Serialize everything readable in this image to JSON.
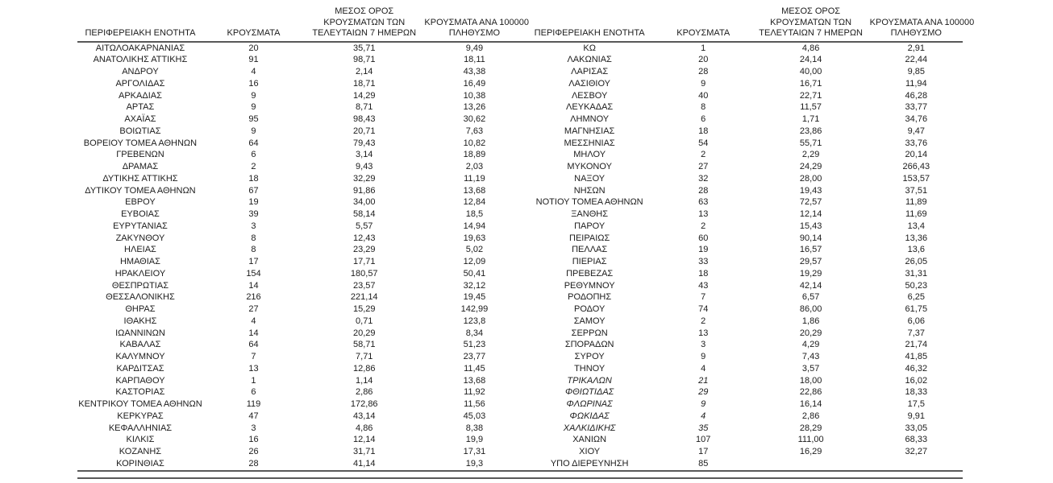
{
  "page": {
    "background_color": "#ffffff",
    "text_color": "#1c1c1c",
    "rule_color": "#595959"
  },
  "chart_data": {
    "type": "table",
    "layout": "two side-by-side halves sharing one continuous header underline and double bottom rule",
    "headers": {
      "region": "ΠΕΡΙΦΕΡΕΙΑΚΗ ΕΝΟΤΗΤΑ",
      "cases": "ΚΡΟΥΣΜΑΤΑ",
      "avg7_lines": [
        "ΜΕΣΟΣ ΟΡΟΣ",
        "ΚΡΟΥΣΜΑΤΩΝ ΤΩΝ",
        "ΤΕΛΕΥΤΑΙΩΝ 7 ΗΜΕΡΩΝ"
      ],
      "per100k_lines": [
        "ΚΡΟΥΣΜΑΤΑ ΑΝΑ 100000",
        "ΠΛΗΘΥΣΜΟ"
      ]
    },
    "left_rows": [
      [
        "ΑΙΤΩΛΟΑΚΑΡΝΑΝΙΑΣ",
        "20",
        "35,71",
        "9,49"
      ],
      [
        "ΑΝΑΤΟΛΙΚΗΣ ΑΤΤΙΚΗΣ",
        "91",
        "98,71",
        "18,11"
      ],
      [
        "ΑΝΔΡΟΥ",
        "4",
        "2,14",
        "43,38"
      ],
      [
        "ΑΡΓΟΛΙΔΑΣ",
        "16",
        "18,71",
        "16,49"
      ],
      [
        "ΑΡΚΑΔΙΑΣ",
        "9",
        "14,29",
        "10,38"
      ],
      [
        "ΑΡΤΑΣ",
        "9",
        "8,71",
        "13,26"
      ],
      [
        "ΑΧΑΪΑΣ",
        "95",
        "98,43",
        "30,62"
      ],
      [
        "ΒΟΙΩΤΙΑΣ",
        "9",
        "20,71",
        "7,63"
      ],
      [
        "ΒΟΡΕΙΟΥ ΤΟΜΕΑ ΑΘΗΝΩΝ",
        "64",
        "79,43",
        "10,82"
      ],
      [
        "ΓΡΕΒΕΝΩΝ",
        "6",
        "3,14",
        "18,89"
      ],
      [
        "ΔΡΑΜΑΣ",
        "2",
        "9,43",
        "2,03"
      ],
      [
        "ΔΥΤΙΚΗΣ ΑΤΤΙΚΗΣ",
        "18",
        "32,29",
        "11,19"
      ],
      [
        "ΔΥΤΙΚΟΥ ΤΟΜΕΑ ΑΘΗΝΩΝ",
        "67",
        "91,86",
        "13,68"
      ],
      [
        "ΕΒΡΟΥ",
        "19",
        "34,00",
        "12,84"
      ],
      [
        "ΕΥΒΟΙΑΣ",
        "39",
        "58,14",
        "18,5"
      ],
      [
        "ΕΥΡΥΤΑΝΙΑΣ",
        "3",
        "5,57",
        "14,94"
      ],
      [
        "ΖΑΚΥΝΘΟΥ",
        "8",
        "12,43",
        "19,63"
      ],
      [
        "ΗΛΕΙΑΣ",
        "8",
        "23,29",
        "5,02"
      ],
      [
        "ΗΜΑΘΙΑΣ",
        "17",
        "17,71",
        "12,09"
      ],
      [
        "ΗΡΑΚΛΕΙΟΥ",
        "154",
        "180,57",
        "50,41"
      ],
      [
        "ΘΕΣΠΡΩΤΙΑΣ",
        "14",
        "23,57",
        "32,12"
      ],
      [
        "ΘΕΣΣΑΛΟΝΙΚΗΣ",
        "216",
        "221,14",
        "19,45"
      ],
      [
        "ΘΗΡΑΣ",
        "27",
        "15,29",
        "142,99"
      ],
      [
        "ΙΘΑΚΗΣ",
        "4",
        "0,71",
        "123,8"
      ],
      [
        "ΙΩΑΝΝΙΝΩΝ",
        "14",
        "20,29",
        "8,34"
      ],
      [
        "ΚΑΒΑΛΑΣ",
        "64",
        "58,71",
        "51,23"
      ],
      [
        "ΚΑΛΥΜΝΟΥ",
        "7",
        "7,71",
        "23,77"
      ],
      [
        "ΚΑΡΔΙΤΣΑΣ",
        "13",
        "12,86",
        "11,45"
      ],
      [
        "ΚΑΡΠΑΘΟΥ",
        "1",
        "1,14",
        "13,68"
      ],
      [
        "ΚΑΣΤΟΡΙΑΣ",
        "6",
        "2,86",
        "11,92"
      ],
      [
        "ΚΕΝΤΡΙΚΟΥ ΤΟΜΕΑ ΑΘΗΝΩΝ",
        "119",
        "172,86",
        "11,56"
      ],
      [
        "ΚΕΡΚΥΡΑΣ",
        "47",
        "43,14",
        "45,03"
      ],
      [
        "ΚΕΦΑΛΛΗΝΙΑΣ",
        "3",
        "4,86",
        "8,38"
      ],
      [
        "ΚΙΛΚΙΣ",
        "16",
        "12,14",
        "19,9"
      ],
      [
        "ΚΟΖΑΝΗΣ",
        "26",
        "31,71",
        "17,31"
      ],
      [
        "ΚΟΡΙΝΘΙΑΣ",
        "28",
        "41,14",
        "19,3"
      ]
    ],
    "right_rows": [
      [
        "ΚΩ",
        "1",
        "4,86",
        "2,91"
      ],
      [
        "ΛΑΚΩΝΙΑΣ",
        "20",
        "24,14",
        "22,44"
      ],
      [
        "ΛΑΡΙΣΑΣ",
        "28",
        "40,00",
        "9,85"
      ],
      [
        "ΛΑΣΙΘΙΟΥ",
        "9",
        "16,71",
        "11,94"
      ],
      [
        "ΛΕΣΒΟΥ",
        "40",
        "22,71",
        "46,28"
      ],
      [
        "ΛΕΥΚΑΔΑΣ",
        "8",
        "11,57",
        "33,77"
      ],
      [
        "ΛΗΜΝΟΥ",
        "6",
        "1,71",
        "34,76"
      ],
      [
        "ΜΑΓΝΗΣΙΑΣ",
        "18",
        "23,86",
        "9,47"
      ],
      [
        "ΜΕΣΣΗΝΙΑΣ",
        "54",
        "55,71",
        "33,76"
      ],
      [
        "ΜΗΛΟΥ",
        "2",
        "2,29",
        "20,14"
      ],
      [
        "ΜΥΚΟΝΟΥ",
        "27",
        "24,29",
        "266,43"
      ],
      [
        "ΝΑΞΟΥ",
        "32",
        "28,00",
        "153,57"
      ],
      [
        "ΝΗΣΩΝ",
        "28",
        "19,43",
        "37,51"
      ],
      [
        "ΝΟΤΙΟΥ ΤΟΜΕΑ ΑΘΗΝΩΝ",
        "63",
        "72,57",
        "11,89"
      ],
      [
        "ΞΑΝΘΗΣ",
        "13",
        "12,14",
        "11,69"
      ],
      [
        "ΠΑΡΟΥ",
        "2",
        "15,43",
        "13,4"
      ],
      [
        "ΠΕΙΡΑΙΩΣ",
        "60",
        "90,14",
        "13,36"
      ],
      [
        "ΠΕΛΛΑΣ",
        "19",
        "16,57",
        "13,6"
      ],
      [
        "ΠΙΕΡΙΑΣ",
        "33",
        "29,57",
        "26,05"
      ],
      [
        "ΠΡΕΒΕΖΑΣ",
        "18",
        "19,29",
        "31,31"
      ],
      [
        "ΡΕΘΥΜΝΟΥ",
        "43",
        "42,14",
        "50,23"
      ],
      [
        "ΡΟΔΟΠΗΣ",
        "7",
        "6,57",
        "6,25"
      ],
      [
        "ΡΟΔΟΥ",
        "74",
        "86,00",
        "61,75"
      ],
      [
        "ΣΑΜΟΥ",
        "2",
        "1,86",
        "6,06"
      ],
      [
        "ΣΕΡΡΩΝ",
        "13",
        "20,29",
        "7,37"
      ],
      [
        "ΣΠΟΡΑΔΩΝ",
        "3",
        "4,29",
        "21,74"
      ],
      [
        "ΣΥΡΟΥ",
        "9",
        "7,43",
        "41,85"
      ],
      [
        "ΤΗΝΟΥ",
        "4",
        "3,57",
        "46,32"
      ],
      [
        "ΤΡΙΚΑΛΩΝ",
        "21",
        "18,00",
        "16,02"
      ],
      [
        "ΦΘΙΩΤΙΔΑΣ",
        "29",
        "22,86",
        "18,33"
      ],
      [
        "ΦΛΩΡΙΝΑΣ",
        "9",
        "16,14",
        "17,5"
      ],
      [
        "ΦΩΚΙΔΑΣ",
        "4",
        "2,86",
        "9,91"
      ],
      [
        "ΧΑΛΚΙΔΙΚΗΣ",
        "35",
        "28,29",
        "33,05"
      ],
      [
        "ΧΑΝΙΩΝ",
        "107",
        "111,00",
        "68,33"
      ],
      [
        "ΧΙΟΥ",
        "17",
        "16,29",
        "32,27"
      ],
      [
        "ΥΠΟ ΔΙΕΡΕΥΝΗΣΗ",
        "85",
        "",
        ""
      ]
    ],
    "right_italic_row_indexes": [
      28,
      29,
      30,
      31,
      32
    ],
    "italic_note": "italic styling applies to region name and cases columns only on those rows"
  }
}
